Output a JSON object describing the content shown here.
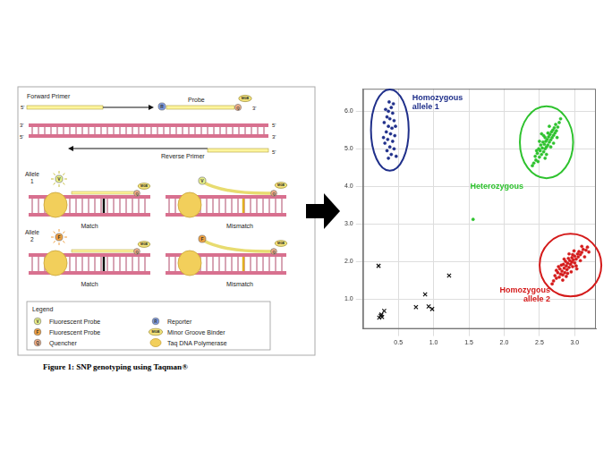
{
  "caption": "Figure 1: SNP genotyping using Taqman®",
  "diagram": {
    "forward_primer": "Forward Primer",
    "probe": "Probe",
    "reverse_primer": "Reverse Primer",
    "five_end": "5'",
    "three_end": "3'",
    "alleles": [
      {
        "label": [
          "Allele",
          "1"
        ],
        "match": "Match",
        "mismatch": "Mismatch"
      },
      {
        "label": [
          "Allele",
          "2"
        ],
        "match": "Match",
        "mismatch": "Mismatch"
      }
    ],
    "legend": {
      "title": "Legend",
      "items": [
        {
          "icon": "V",
          "text": "Fluorescent Probe",
          "color": "#e8f08a"
        },
        {
          "icon": "R",
          "text": "Reporter",
          "color": "#7f9be0"
        },
        {
          "icon": "F",
          "text": "Fluorescent Probe",
          "color": "#f0a040"
        },
        {
          "icon": "MGB",
          "text": "Minor Groove Binder",
          "color": "#f3e27a"
        },
        {
          "icon": "Q",
          "text": "Quencher",
          "color": "#f0b08a"
        },
        {
          "text": "Taq DNA Polymerase",
          "color": "#f2cf5b"
        }
      ]
    }
  },
  "chart_data": {
    "type": "scatter",
    "xlim": [
      0,
      3.3
    ],
    "ylim": [
      0.2,
      6.6
    ],
    "xticks": [
      0.5,
      {
        "value": 1,
        "label": "1.0"
      },
      1.5,
      {
        "value": 2,
        "label": "2.0"
      },
      2.5,
      {
        "value": 3,
        "label": "3.0"
      }
    ],
    "yticks": [
      {
        "value": 1,
        "label": "1.0"
      },
      {
        "value": 2,
        "label": "2.0"
      },
      {
        "value": 3,
        "label": "3.0"
      },
      {
        "value": 4,
        "label": "4.0"
      },
      {
        "value": 5,
        "label": "5.0"
      },
      {
        "value": 6,
        "label": "6.0"
      }
    ],
    "grid": true,
    "series": [
      {
        "name": "Homozygous allele 1",
        "color": "#1f2f8a",
        "marker": "circle",
        "values": [
          [
            0.32,
            6.05
          ],
          [
            0.36,
            6.0
          ],
          [
            0.4,
            6.1
          ],
          [
            0.42,
            5.95
          ],
          [
            0.34,
            5.85
          ],
          [
            0.38,
            5.8
          ],
          [
            0.44,
            5.75
          ],
          [
            0.3,
            5.7
          ],
          [
            0.36,
            5.6
          ],
          [
            0.41,
            5.55
          ],
          [
            0.33,
            5.45
          ],
          [
            0.39,
            5.4
          ],
          [
            0.45,
            5.35
          ],
          [
            0.35,
            5.25
          ],
          [
            0.42,
            5.2
          ],
          [
            0.31,
            5.15
          ],
          [
            0.38,
            5.05
          ],
          [
            0.44,
            5.0
          ],
          [
            0.34,
            4.95
          ],
          [
            0.4,
            4.85
          ],
          [
            0.47,
            4.8
          ],
          [
            0.37,
            6.25
          ],
          [
            0.29,
            5.3
          ],
          [
            0.46,
            5.6
          ],
          [
            0.36,
            4.75
          ],
          [
            0.43,
            6.2
          ]
        ]
      },
      {
        "name": "Heterozygous",
        "color": "#2ec22e",
        "marker": "circle",
        "values": [
          [
            2.42,
            4.62
          ],
          [
            2.45,
            4.7
          ],
          [
            2.48,
            4.66
          ],
          [
            2.44,
            4.8
          ],
          [
            2.5,
            4.78
          ],
          [
            2.47,
            4.88
          ],
          [
            2.53,
            4.85
          ],
          [
            2.51,
            4.95
          ],
          [
            2.56,
            4.92
          ],
          [
            2.49,
            5.0
          ],
          [
            2.54,
            5.02
          ],
          [
            2.58,
            5.0
          ],
          [
            2.6,
            5.05
          ],
          [
            2.52,
            5.1
          ],
          [
            2.57,
            5.12
          ],
          [
            2.62,
            5.1
          ],
          [
            2.55,
            5.18
          ],
          [
            2.59,
            5.2
          ],
          [
            2.64,
            5.18
          ],
          [
            2.61,
            5.25
          ],
          [
            2.66,
            5.24
          ],
          [
            2.58,
            5.3
          ],
          [
            2.63,
            5.32
          ],
          [
            2.68,
            5.3
          ],
          [
            2.65,
            5.38
          ],
          [
            2.7,
            5.36
          ],
          [
            2.62,
            5.42
          ],
          [
            2.67,
            5.45
          ],
          [
            2.72,
            5.42
          ],
          [
            2.69,
            5.5
          ],
          [
            2.74,
            5.48
          ],
          [
            2.71,
            5.56
          ],
          [
            2.76,
            5.58
          ],
          [
            2.73,
            5.65
          ],
          [
            2.78,
            5.7
          ],
          [
            2.56,
            5.35
          ],
          [
            2.5,
            5.2
          ],
          [
            2.66,
            5.05
          ],
          [
            2.7,
            5.15
          ],
          [
            2.46,
            4.95
          ],
          [
            2.6,
            4.85
          ],
          [
            2.75,
            5.3
          ],
          [
            2.53,
            5.4
          ],
          [
            2.8,
            5.8
          ],
          [
            2.4,
            4.55
          ],
          [
            2.64,
            5.6
          ],
          [
            2.58,
            4.75
          ]
        ]
      },
      {
        "color": "#2ec22e",
        "marker": "circle",
        "values": [
          [
            1.56,
            3.12
          ]
        ]
      },
      {
        "name": "Homozygous allele 2",
        "color": "#d41a1a",
        "marker": "circle",
        "values": [
          [
            2.7,
            1.48
          ],
          [
            2.74,
            1.55
          ],
          [
            2.72,
            1.62
          ],
          [
            2.78,
            1.58
          ],
          [
            2.8,
            1.66
          ],
          [
            2.76,
            1.7
          ],
          [
            2.83,
            1.64
          ],
          [
            2.82,
            1.74
          ],
          [
            2.86,
            1.7
          ],
          [
            2.79,
            1.8
          ],
          [
            2.85,
            1.82
          ],
          [
            2.89,
            1.78
          ],
          [
            2.88,
            1.88
          ],
          [
            2.92,
            1.84
          ],
          [
            2.84,
            1.92
          ],
          [
            2.9,
            1.95
          ],
          [
            2.94,
            1.92
          ],
          [
            2.96,
            1.98
          ],
          [
            2.87,
            2.0
          ],
          [
            2.93,
            2.02
          ],
          [
            2.98,
            2.04
          ],
          [
            3.0,
            1.96
          ],
          [
            2.91,
            2.08
          ],
          [
            2.96,
            2.1
          ],
          [
            3.02,
            2.06
          ],
          [
            3.0,
            2.14
          ],
          [
            3.05,
            2.12
          ],
          [
            2.97,
            2.18
          ],
          [
            3.04,
            2.2
          ],
          [
            3.08,
            2.18
          ],
          [
            3.06,
            2.26
          ],
          [
            3.1,
            2.24
          ],
          [
            3.12,
            2.32
          ],
          [
            3.16,
            2.3
          ],
          [
            3.18,
            2.38
          ],
          [
            2.81,
            1.9
          ],
          [
            2.88,
            1.6
          ],
          [
            2.95,
            1.72
          ],
          [
            3.02,
            1.88
          ],
          [
            3.08,
            2.02
          ],
          [
            2.77,
            1.86
          ],
          [
            2.99,
            2.28
          ],
          [
            3.14,
            2.12
          ],
          [
            2.68,
            1.4
          ],
          [
            2.92,
            2.2
          ],
          [
            3.03,
            1.8
          ],
          [
            2.85,
            2.06
          ],
          [
            2.74,
            1.76
          ],
          [
            3.1,
            2.4
          ],
          [
            2.9,
            1.68
          ],
          [
            3.2,
            2.25
          ],
          [
            2.97,
            1.86
          ],
          [
            2.83,
            1.5
          ]
        ]
      },
      {
        "color": "#111111",
        "marker": "x",
        "values": [
          [
            0.22,
            1.88
          ],
          [
            1.22,
            1.62
          ],
          [
            0.88,
            1.12
          ],
          [
            0.75,
            0.78
          ],
          [
            0.93,
            0.8
          ],
          [
            0.98,
            0.73
          ],
          [
            0.3,
            0.68
          ],
          [
            0.25,
            0.55
          ],
          [
            0.27,
            0.52
          ],
          [
            0.23,
            0.5
          ],
          [
            0.26,
            0.58
          ]
        ]
      }
    ]
  }
}
